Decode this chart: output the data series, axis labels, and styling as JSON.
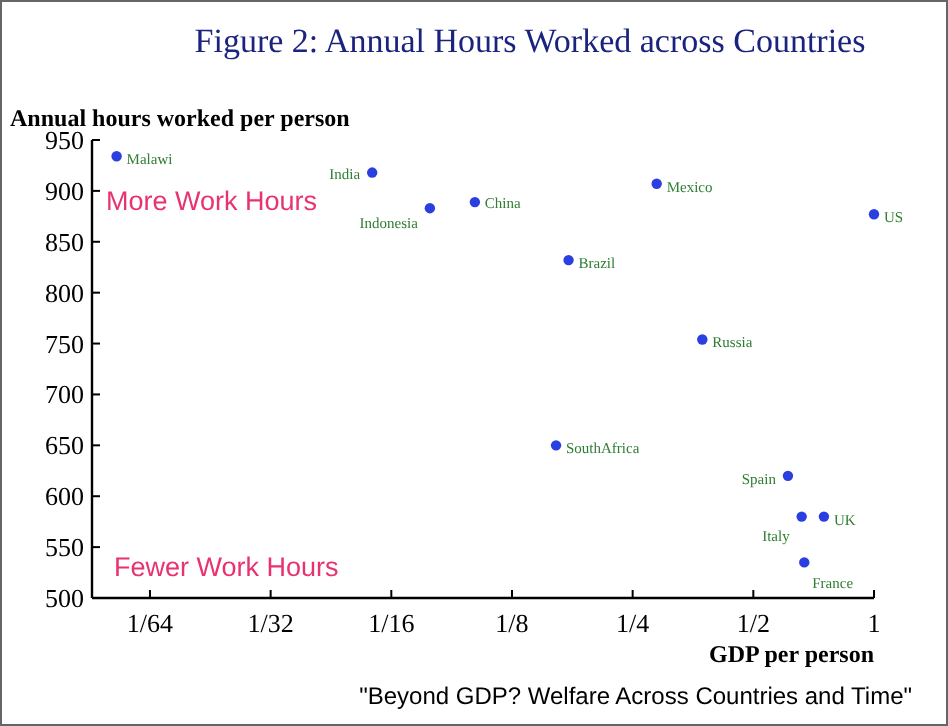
{
  "chart_data": {
    "type": "scatter",
    "title": "Figure 2: Annual Hours Worked across Countries",
    "xlabel": "GDP per person",
    "ylabel": "Annual hours worked per person",
    "log": "x",
    "xlim": [
      0.0112,
      1
    ],
    "ylim": [
      500,
      950
    ],
    "xticks": [
      {
        "value": 0.015625,
        "label": "1/64"
      },
      {
        "value": 0.03125,
        "label": "1/32"
      },
      {
        "value": 0.0625,
        "label": "1/16"
      },
      {
        "value": 0.125,
        "label": "1/8"
      },
      {
        "value": 0.25,
        "label": "1/4"
      },
      {
        "value": 0.5,
        "label": "1/2"
      },
      1
    ],
    "yticks": [
      500,
      550,
      600,
      650,
      700,
      750,
      800,
      850,
      900,
      950
    ],
    "grid": false,
    "marker": "circle",
    "annotations": [
      "More Work Hours",
      "Fewer Work Hours",
      "\"Beyond GDP? Welfare Across Countries and Time\""
    ],
    "series": [
      {
        "name": "Malawi",
        "color": "#2b3fe0",
        "x": [
          0.0129
        ],
        "values": [
          934
        ]
      },
      {
        "name": "India",
        "color": "#2b3fe0",
        "x": [
          0.056
        ],
        "values": [
          918
        ]
      },
      {
        "name": "Indonesia",
        "color": "#2b3fe0",
        "x": [
          0.078
        ],
        "values": [
          883
        ]
      },
      {
        "name": "China",
        "color": "#2b3fe0",
        "x": [
          0.101
        ],
        "values": [
          889
        ]
      },
      {
        "name": "Mexico",
        "color": "#2b3fe0",
        "x": [
          0.287
        ],
        "values": [
          907
        ]
      },
      {
        "name": "Brazil",
        "color": "#2b3fe0",
        "x": [
          0.173
        ],
        "values": [
          832
        ]
      },
      {
        "name": "US",
        "color": "#2b3fe0",
        "x": [
          1
        ],
        "values": [
          877
        ]
      },
      {
        "name": "Russia",
        "color": "#2b3fe0",
        "x": [
          0.373
        ],
        "values": [
          754
        ]
      },
      {
        "name": "SouthAfrica",
        "color": "#2b3fe0",
        "x": [
          0.161
        ],
        "values": [
          650
        ]
      },
      {
        "name": "Spain",
        "color": "#2b3fe0",
        "x": [
          0.61
        ],
        "values": [
          620
        ]
      },
      {
        "name": "Italy",
        "color": "#2b3fe0",
        "x": [
          0.66
        ],
        "values": [
          580
        ]
      },
      {
        "name": "UK",
        "color": "#2b3fe0",
        "x": [
          0.75
        ],
        "values": [
          580
        ]
      },
      {
        "name": "France",
        "color": "#2b3fe0",
        "x": [
          0.67
        ],
        "values": [
          535
        ]
      }
    ]
  }
}
